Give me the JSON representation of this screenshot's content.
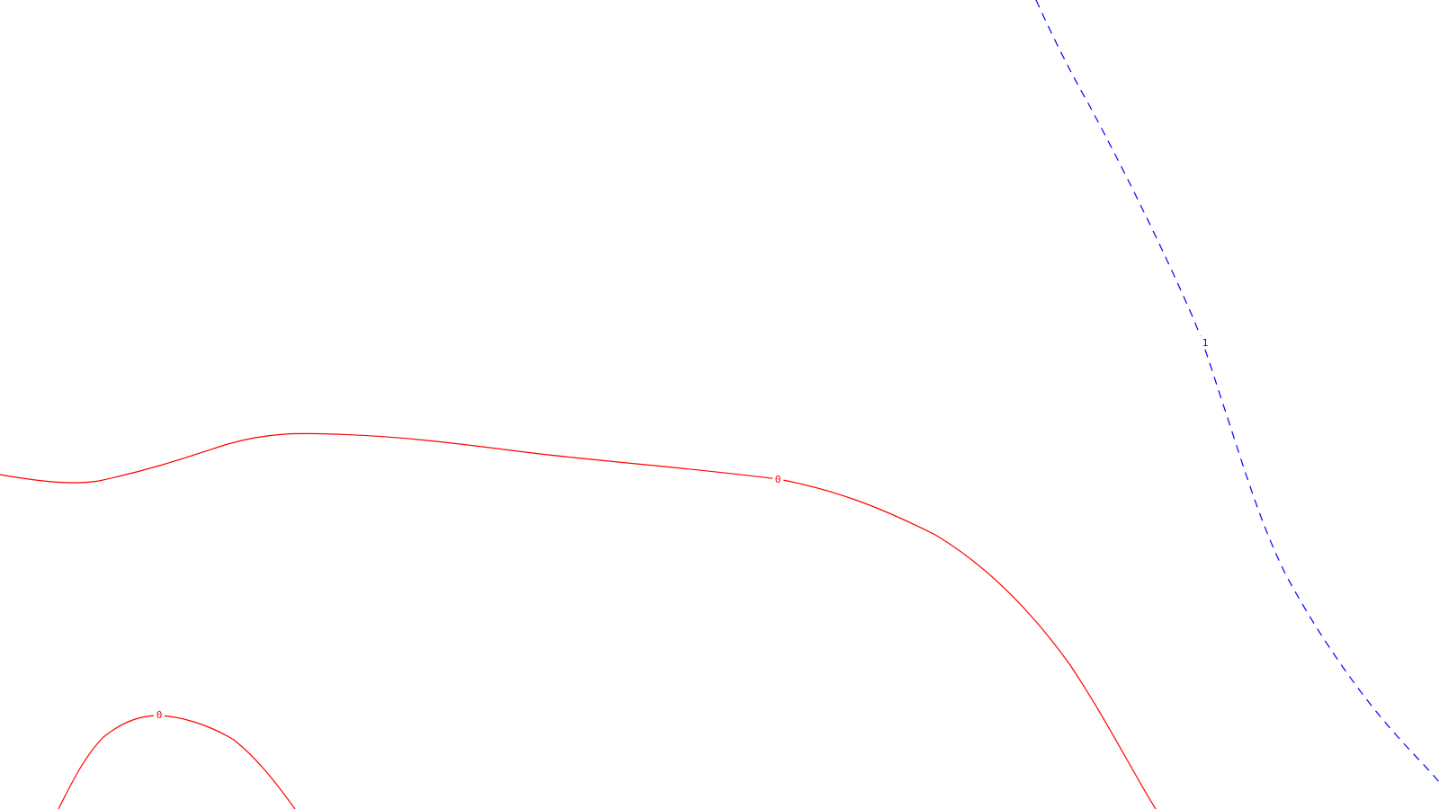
{
  "contours": [
    {
      "id": "zero-main",
      "level_label": "0",
      "color": "#ff0000",
      "style": "solid"
    },
    {
      "id": "zero-lower",
      "level_label": "0",
      "color": "#ff0000",
      "style": "solid"
    },
    {
      "id": "one-right",
      "level_label": "1",
      "color": "#0000ff",
      "style": "dashed"
    }
  ]
}
